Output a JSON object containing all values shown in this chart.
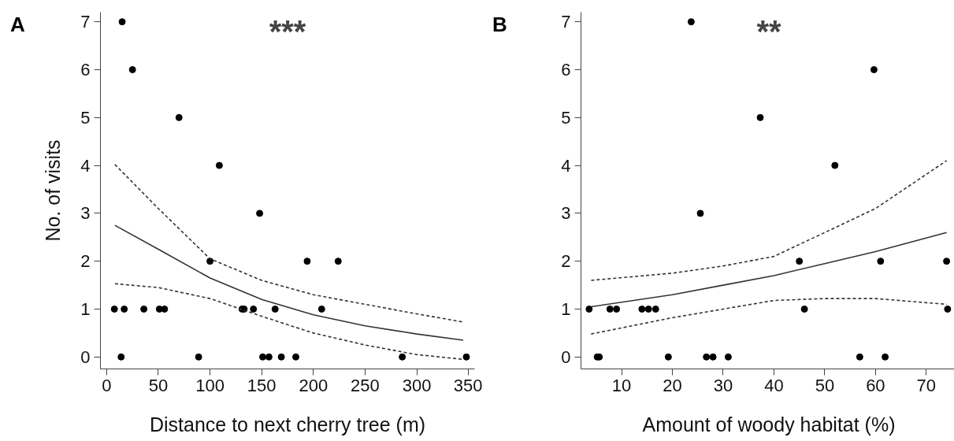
{
  "chart_data": [
    {
      "type": "scatter",
      "annotations": [
        "A",
        "***"
      ],
      "xlabel": "Distance to next cherry tree (m)",
      "ylabel": "No. of visits",
      "xlim": [
        -6,
        356
      ],
      "ylim": [
        -0.25,
        7.2
      ],
      "xticks": [
        0,
        50,
        100,
        150,
        200,
        250,
        300,
        350
      ],
      "yticks": [
        0,
        1,
        2,
        3,
        4,
        5,
        6,
        7
      ],
      "series": [
        {
          "marker": "circle",
          "color": "#000000",
          "x": [
            15,
            25,
            70,
            109,
            148,
            100,
            194,
            224,
            7.5,
            17,
            36,
            51,
            56,
            131,
            133,
            142,
            163,
            208,
            14,
            89,
            151,
            157,
            169,
            183,
            286,
            348
          ],
          "values": [
            7,
            6,
            5,
            4,
            3,
            2,
            2,
            2,
            1,
            1,
            1,
            1,
            1,
            1,
            1,
            1,
            1,
            1,
            0,
            0,
            0,
            0,
            0,
            0,
            0,
            0
          ]
        },
        {
          "type": "line",
          "line_style": "solid",
          "color": "#333333",
          "x": [
            8,
            50,
            100,
            150,
            200,
            250,
            300,
            345
          ],
          "values": [
            2.75,
            2.25,
            1.65,
            1.2,
            0.88,
            0.65,
            0.48,
            0.35
          ]
        },
        {
          "type": "line",
          "line_style": "dashed",
          "color": "#333333",
          "x": [
            8,
            50,
            100,
            150,
            200,
            250,
            300,
            345
          ],
          "values": [
            4.02,
            3.1,
            2.05,
            1.6,
            1.3,
            1.1,
            0.9,
            0.73
          ]
        },
        {
          "type": "line",
          "line_style": "dashed",
          "color": "#333333",
          "x": [
            8,
            50,
            100,
            150,
            200,
            250,
            300,
            345
          ],
          "values": [
            1.53,
            1.45,
            1.22,
            0.85,
            0.5,
            0.25,
            0.05,
            -0.05
          ]
        }
      ]
    },
    {
      "type": "scatter",
      "annotations": [
        "B",
        "**"
      ],
      "xlabel": "Amount of woody habitat (%)",
      "xlim": [
        2,
        76
      ],
      "ylim": [
        -0.25,
        7.2
      ],
      "xticks": [
        10,
        20,
        30,
        40,
        50,
        60,
        70
      ],
      "yticks": [
        0,
        1,
        2,
        3,
        4,
        5,
        6,
        7
      ],
      "series": [
        {
          "marker": "circle",
          "color": "#000000",
          "x": [
            23.7,
            37.3,
            59.7,
            52,
            25.5,
            45,
            61,
            74,
            3.6,
            7.7,
            9,
            14,
            15.3,
            16.7,
            46,
            74.2,
            5.2,
            5.6,
            19.2,
            26.7,
            28,
            31,
            56.9,
            61.9
          ],
          "values": [
            7,
            5,
            6,
            4,
            3,
            2,
            2,
            2,
            1,
            1,
            1,
            1,
            1,
            1,
            1,
            1,
            0,
            0,
            0,
            0,
            0,
            0,
            0,
            0
          ]
        },
        {
          "type": "line",
          "line_style": "solid",
          "color": "#333333",
          "x": [
            4,
            20,
            30,
            40,
            50,
            60,
            74
          ],
          "values": [
            1.05,
            1.3,
            1.5,
            1.7,
            1.95,
            2.2,
            2.6
          ]
        },
        {
          "type": "line",
          "line_style": "dashed",
          "color": "#333333",
          "x": [
            4,
            20,
            30,
            40,
            50,
            60,
            74
          ],
          "values": [
            1.6,
            1.75,
            1.9,
            2.1,
            2.6,
            3.1,
            4.1
          ]
        },
        {
          "type": "line",
          "line_style": "dashed",
          "color": "#333333",
          "x": [
            4,
            20,
            30,
            40,
            50,
            60,
            74
          ],
          "values": [
            0.48,
            0.82,
            1.0,
            1.18,
            1.22,
            1.22,
            1.1
          ]
        }
      ]
    }
  ]
}
